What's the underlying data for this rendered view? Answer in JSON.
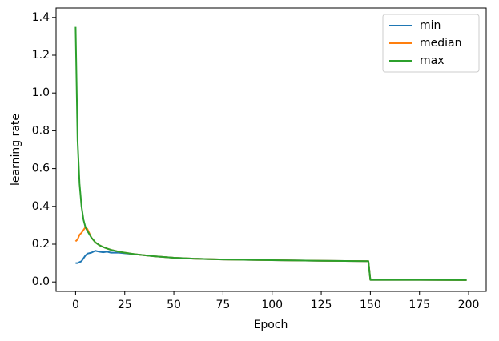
{
  "chart_data": {
    "type": "line",
    "xlabel": "Epoch",
    "ylabel": "learning rate",
    "x": [
      0,
      1,
      2,
      3,
      4,
      5,
      6,
      8,
      10,
      12,
      14,
      16,
      18,
      20,
      22,
      25,
      30,
      40,
      50,
      60,
      75,
      100,
      125,
      149,
      150,
      175,
      199
    ],
    "series": [
      {
        "name": "min",
        "color": "#1f77b4",
        "values": [
          0.1,
          0.1,
          0.105,
          0.11,
          0.125,
          0.14,
          0.15,
          0.155,
          0.165,
          0.16,
          0.157,
          0.16,
          0.155,
          0.155,
          0.155,
          0.152,
          0.147,
          0.136,
          0.128,
          0.123,
          0.119,
          0.115,
          0.112,
          0.11,
          0.011,
          0.011,
          0.01
        ]
      },
      {
        "name": "median",
        "color": "#ff7f0e",
        "values": [
          0.215,
          0.225,
          0.25,
          0.26,
          0.275,
          0.29,
          0.28,
          0.235,
          0.21,
          0.195,
          0.185,
          0.177,
          0.17,
          0.165,
          0.16,
          0.155,
          0.147,
          0.136,
          0.128,
          0.123,
          0.119,
          0.115,
          0.112,
          0.11,
          0.011,
          0.011,
          0.01
        ]
      },
      {
        "name": "max",
        "color": "#2ca02c",
        "values": [
          1.35,
          0.75,
          0.52,
          0.4,
          0.33,
          0.29,
          0.27,
          0.235,
          0.21,
          0.195,
          0.185,
          0.177,
          0.17,
          0.165,
          0.16,
          0.155,
          0.147,
          0.136,
          0.128,
          0.123,
          0.119,
          0.115,
          0.112,
          0.11,
          0.011,
          0.011,
          0.01
        ]
      }
    ],
    "xlim": [
      -9.95,
      208.95
    ],
    "xticks": [
      0,
      25,
      50,
      75,
      100,
      125,
      150,
      175,
      200
    ],
    "ylim": [
      -0.05,
      1.45
    ],
    "yticks": [
      {
        "value": 0,
        "label": "0.0"
      },
      0.2,
      0.4,
      0.6,
      0.8,
      {
        "value": 1,
        "label": "1.0"
      },
      1.2,
      1.4
    ],
    "legend": "upper right"
  }
}
